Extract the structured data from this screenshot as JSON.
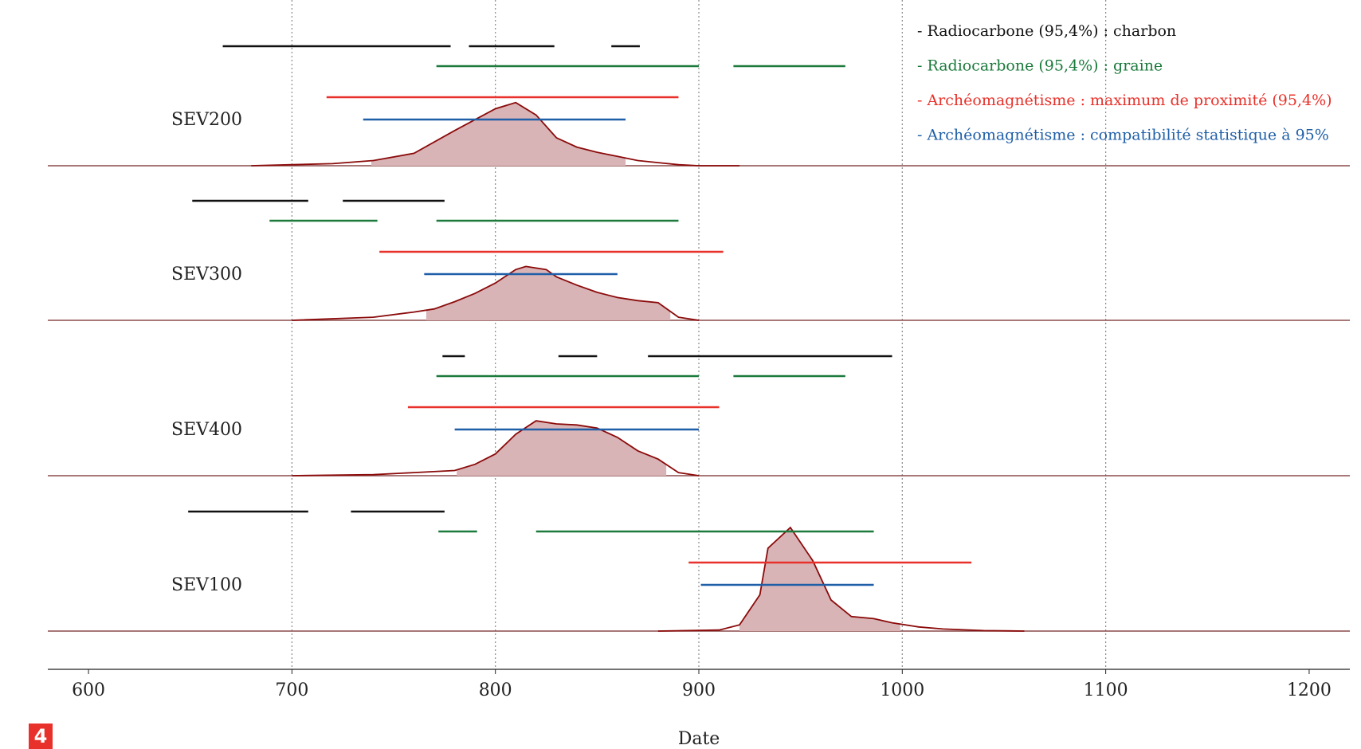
{
  "chart_data": {
    "type": "interval-density",
    "x_label": "Date",
    "figure_label": "4",
    "xlim": [
      580,
      1220
    ],
    "xticks": [
      600,
      700,
      800,
      900,
      1000,
      1100,
      1200
    ],
    "grid": true,
    "density_color": "#8b0a0a",
    "hpd_color": "#d9b4b6",
    "series": [
      {
        "name": "- Radiocarbone (95,4%) : charbon",
        "color": "#111111"
      },
      {
        "name": "- Radiocarbone (95,4%) : graine",
        "color": "#1b7a3c"
      },
      {
        "name": "- Archéomagnétisme : maximum de proximité (95,4%)",
        "color": "#e8312a"
      },
      {
        "name": "- Archéomagnétisme : compatibilité statistique à 95%",
        "color": "#1f5fa8"
      }
    ],
    "panels": [
      {
        "label": "SEV200",
        "ranges": [
          [
            [
              666,
              778
            ],
            [
              787,
              829
            ],
            [
              857,
              871
            ]
          ],
          [
            [
              771,
              900
            ],
            [
              917,
              972
            ]
          ],
          [
            [
              717,
              890
            ]
          ],
          [
            [
              735,
              864
            ]
          ]
        ],
        "hpd": [
          739,
          864
        ],
        "density_x": [
          680,
          700,
          720,
          740,
          760,
          780,
          800,
          810,
          820,
          830,
          840,
          850,
          860,
          870,
          880,
          890,
          900,
          920
        ],
        "density": [
          0,
          0.01,
          0.02,
          0.05,
          0.12,
          0.34,
          0.55,
          0.61,
          0.49,
          0.27,
          0.18,
          0.13,
          0.09,
          0.05,
          0.03,
          0.01,
          0,
          0
        ]
      },
      {
        "label": "SEV300",
        "ranges": [
          [
            [
              651,
              708
            ],
            [
              725,
              775
            ]
          ],
          [
            [
              689,
              742
            ],
            [
              771,
              890
            ]
          ],
          [
            [
              743,
              912
            ]
          ],
          [
            [
              765,
              860
            ]
          ]
        ],
        "hpd": [
          766,
          886
        ],
        "density_x": [
          700,
          740,
          760,
          770,
          780,
          790,
          800,
          810,
          815,
          825,
          830,
          840,
          850,
          860,
          870,
          880,
          890,
          900
        ],
        "density": [
          0,
          0.03,
          0.08,
          0.11,
          0.18,
          0.26,
          0.36,
          0.49,
          0.52,
          0.49,
          0.42,
          0.34,
          0.27,
          0.22,
          0.19,
          0.17,
          0.03,
          0
        ]
      },
      {
        "label": "SEV400",
        "ranges": [
          [
            [
              774,
              785
            ],
            [
              831,
              850
            ],
            [
              875,
              995
            ]
          ],
          [
            [
              771,
              900
            ],
            [
              917,
              972
            ]
          ],
          [
            [
              757,
              910
            ]
          ],
          [
            [
              780,
              900
            ]
          ]
        ],
        "hpd": [
          781,
          884
        ],
        "density_x": [
          700,
          740,
          760,
          780,
          790,
          800,
          810,
          820,
          830,
          840,
          850,
          860,
          870,
          880,
          890,
          900
        ],
        "density": [
          0,
          0.01,
          0.03,
          0.05,
          0.11,
          0.21,
          0.4,
          0.53,
          0.5,
          0.49,
          0.46,
          0.37,
          0.24,
          0.16,
          0.03,
          0
        ]
      },
      {
        "label": "SEV100",
        "ranges": [
          [
            [
              649,
              708
            ],
            [
              729,
              775
            ]
          ],
          [
            [
              772,
              791
            ],
            [
              820,
              986
            ]
          ],
          [
            [
              895,
              1034
            ]
          ],
          [
            [
              901,
              986
            ]
          ]
        ],
        "hpd": [
          920,
          999
        ],
        "density_x": [
          880,
          910,
          920,
          930,
          934,
          945,
          956,
          965,
          975,
          986,
          995,
          1008,
          1020,
          1040,
          1060
        ],
        "density": [
          0,
          0.01,
          0.06,
          0.35,
          0.8,
          1.0,
          0.68,
          0.3,
          0.14,
          0.12,
          0.08,
          0.04,
          0.02,
          0.005,
          0
        ]
      }
    ]
  }
}
